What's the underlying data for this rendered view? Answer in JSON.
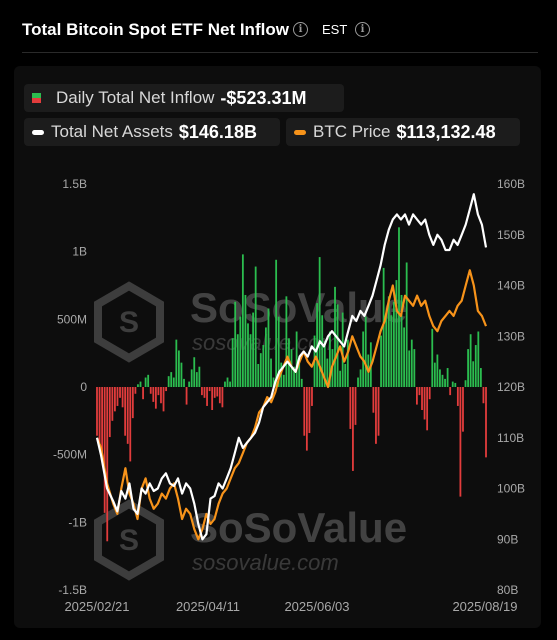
{
  "header": {
    "title": "Total Bitcoin Spot ETF Net Inflow",
    "timezone": "EST",
    "info_icon": "info-circle-icon"
  },
  "legend": {
    "inflow": {
      "label": "Daily Total Net Inflow",
      "value": "-$523.31M",
      "positive_color": "#2bbd4f",
      "negative_color": "#e23c3c"
    },
    "assets": {
      "label": "Total Net Assets",
      "value": "$146.18B",
      "color": "#ffffff"
    },
    "btc": {
      "label": "BTC Price",
      "value": "$113,132.48",
      "color": "#f7931a"
    }
  },
  "watermark": {
    "logo_text": "SoSoValue",
    "url_text": "sosovalue.com"
  },
  "chart_data": {
    "type": "bar",
    "x_range": [
      "2025-02-21",
      "2025-08-19"
    ],
    "x_tick_labels": [
      "2025/02/21",
      "2025/04/11",
      "2025/06/03",
      "2025/08/19"
    ],
    "left_axis": {
      "ticks": [
        "1.5B",
        "1B",
        "500M",
        "0",
        "-500M",
        "-1B",
        "-1.5B"
      ],
      "ylim": [
        -1.5,
        1.5
      ],
      "unit": "B USD"
    },
    "right_axis": {
      "ticks": [
        "160B",
        "150B",
        "140B",
        "130B",
        "120B",
        "110B",
        "100B",
        "90B",
        "80B"
      ],
      "ylim": [
        80,
        160
      ],
      "unit": "B USD"
    },
    "series": [
      {
        "name": "Daily Total Net Inflow",
        "type": "bar",
        "axis": "left",
        "values": [
          -0.36,
          -0.45,
          -0.52,
          -0.93,
          -1.14,
          -0.37,
          -0.25,
          -0.18,
          -0.14,
          -0.08,
          -0.15,
          -0.36,
          -0.42,
          -0.55,
          -0.23,
          -0.05,
          0.02,
          0.04,
          -0.09,
          0.07,
          0.09,
          -0.05,
          -0.11,
          -0.16,
          -0.06,
          -0.12,
          -0.18,
          -0.03,
          0.08,
          0.11,
          0.07,
          0.35,
          0.27,
          0.18,
          0.06,
          -0.13,
          0.04,
          0.13,
          0.22,
          0.11,
          0.15,
          -0.06,
          -0.08,
          -0.14,
          -0.03,
          -0.17,
          -0.08,
          -0.07,
          -0.12,
          -0.15,
          0.04,
          0.07,
          0.04,
          0.36,
          0.63,
          0.39,
          0.52,
          0.98,
          0.68,
          0.47,
          0.39,
          0.55,
          0.89,
          0.17,
          0.25,
          0.31,
          0.44,
          0.58,
          0.21,
          0.07,
          0.94,
          0.52,
          0.18,
          0.09,
          0.67,
          0.36,
          0.28,
          0.15,
          0.41,
          0.19,
          0.06,
          -0.36,
          -0.47,
          -0.34,
          -0.14,
          0.38,
          0.62,
          0.96,
          0.53,
          0.34,
          0.21,
          0.41,
          0.28,
          0.74,
          0.61,
          0.12,
          0.55,
          0.17,
          0.35,
          -0.31,
          -0.62,
          -0.28,
          0.07,
          0.13,
          0.41,
          0.52,
          0.24,
          0.33,
          -0.19,
          -0.42,
          -0.36,
          0.38,
          0.88,
          0.54,
          0.67,
          0.53,
          0.63,
          0.79,
          1.18,
          0.68,
          0.44,
          0.92,
          0.27,
          0.35,
          0.28,
          -0.13,
          -0.06,
          -0.17,
          -0.24,
          -0.32,
          -0.09,
          0.43,
          0.18,
          0.24,
          0.13,
          0.09,
          0.06,
          0.14,
          -0.06,
          0.04,
          0.03,
          -0.14,
          -0.81,
          -0.33,
          0.05,
          0.28,
          0.39,
          0.19,
          0.31,
          0.41,
          0.14,
          -0.12,
          -0.52
        ]
      },
      {
        "name": "Total Net Assets",
        "type": "line",
        "axis": "right",
        "points": [
          [
            0,
            110
          ],
          [
            2,
            106.5
          ],
          [
            5,
            100
          ],
          [
            8,
            97.5
          ],
          [
            10,
            95.5
          ],
          [
            12,
            99.5
          ],
          [
            14,
            98
          ],
          [
            16,
            101
          ],
          [
            18,
            96
          ],
          [
            20,
            95
          ],
          [
            22,
            100
          ],
          [
            24,
            99
          ],
          [
            26,
            101
          ],
          [
            28,
            99.5
          ],
          [
            30,
            100
          ],
          [
            32,
            102
          ],
          [
            34,
            103
          ],
          [
            36,
            101
          ],
          [
            38,
            100.5
          ],
          [
            40,
            102
          ],
          [
            42,
            99
          ],
          [
            44,
            101
          ],
          [
            46,
            100
          ],
          [
            48,
            97
          ],
          [
            50,
            93
          ],
          [
            52,
            90
          ],
          [
            54,
            91
          ],
          [
            56,
            98
          ],
          [
            58,
            98.5
          ],
          [
            60,
            101
          ],
          [
            62,
            100
          ],
          [
            64,
            102
          ],
          [
            66,
            104
          ],
          [
            68,
            107
          ],
          [
            70,
            110
          ],
          [
            72,
            108
          ],
          [
            74,
            109
          ],
          [
            76,
            110
          ],
          [
            78,
            111
          ],
          [
            80,
            113
          ],
          [
            82,
            116
          ],
          [
            84,
            117
          ],
          [
            86,
            118
          ],
          [
            88,
            121
          ],
          [
            90,
            123
          ],
          [
            92,
            124
          ],
          [
            94,
            125
          ],
          [
            96,
            124
          ],
          [
            98,
            123
          ],
          [
            100,
            126
          ],
          [
            102,
            127
          ],
          [
            104,
            126
          ],
          [
            106,
            128
          ],
          [
            108,
            127
          ],
          [
            110,
            129
          ],
          [
            112,
            128
          ],
          [
            114,
            130
          ],
          [
            116,
            131
          ],
          [
            118,
            130
          ],
          [
            120,
            129
          ],
          [
            122,
            128
          ],
          [
            124,
            131
          ],
          [
            126,
            134
          ],
          [
            128,
            133
          ],
          [
            130,
            135
          ],
          [
            132,
            134
          ],
          [
            134,
            136
          ],
          [
            136,
            138
          ],
          [
            138,
            141
          ],
          [
            140,
            144
          ],
          [
            142,
            148
          ],
          [
            144,
            151
          ],
          [
            146,
            153
          ],
          [
            148,
            154
          ],
          [
            150,
            153
          ],
          [
            152,
            154
          ],
          [
            154,
            152
          ],
          [
            156,
            154
          ],
          [
            158,
            153
          ],
          [
            160,
            152
          ],
          [
            162,
            153
          ],
          [
            164,
            150
          ],
          [
            166,
            148
          ],
          [
            168,
            150
          ],
          [
            170,
            149
          ],
          [
            172,
            147
          ],
          [
            174,
            147
          ],
          [
            176,
            149
          ],
          [
            178,
            148
          ],
          [
            180,
            150
          ],
          [
            182,
            152
          ],
          [
            184,
            155
          ],
          [
            186,
            158
          ],
          [
            188,
            154
          ],
          [
            190,
            152
          ],
          [
            192,
            147.5
          ]
        ]
      },
      {
        "name": "BTC Price",
        "type": "line",
        "axis": "right",
        "points": [
          [
            0,
            110
          ],
          [
            2,
            108
          ],
          [
            5,
            101
          ],
          [
            8,
            97
          ],
          [
            10,
            95
          ],
          [
            12,
            100
          ],
          [
            14,
            104
          ],
          [
            16,
            99
          ],
          [
            18,
            97
          ],
          [
            20,
            94
          ],
          [
            22,
            100
          ],
          [
            24,
            102
          ],
          [
            26,
            98
          ],
          [
            28,
            96
          ],
          [
            30,
            97
          ],
          [
            32,
            99
          ],
          [
            34,
            98
          ],
          [
            36,
            100
          ],
          [
            38,
            101
          ],
          [
            40,
            98
          ],
          [
            42,
            94
          ],
          [
            44,
            96
          ],
          [
            46,
            95
          ],
          [
            48,
            92
          ],
          [
            50,
            90
          ],
          [
            52,
            92
          ],
          [
            54,
            95
          ],
          [
            56,
            93
          ],
          [
            58,
            94
          ],
          [
            60,
            97
          ],
          [
            62,
            99
          ],
          [
            64,
            100
          ],
          [
            66,
            102
          ],
          [
            68,
            104
          ],
          [
            70,
            105
          ],
          [
            72,
            107
          ],
          [
            74,
            109
          ],
          [
            76,
            110
          ],
          [
            78,
            112
          ],
          [
            80,
            115
          ],
          [
            82,
            116
          ],
          [
            84,
            118
          ],
          [
            86,
            117
          ],
          [
            88,
            119
          ],
          [
            90,
            122
          ],
          [
            92,
            124
          ],
          [
            94,
            126
          ],
          [
            96,
            124
          ],
          [
            98,
            123
          ],
          [
            100,
            125
          ],
          [
            102,
            127
          ],
          [
            104,
            125
          ],
          [
            106,
            124
          ],
          [
            108,
            126
          ],
          [
            110,
            124
          ],
          [
            112,
            122
          ],
          [
            114,
            120
          ],
          [
            116,
            124
          ],
          [
            118,
            126
          ],
          [
            120,
            128
          ],
          [
            122,
            125
          ],
          [
            124,
            127
          ],
          [
            126,
            130
          ],
          [
            128,
            128
          ],
          [
            130,
            126
          ],
          [
            132,
            125
          ],
          [
            134,
            123
          ],
          [
            136,
            125
          ],
          [
            138,
            128
          ],
          [
            140,
            131
          ],
          [
            142,
            133
          ],
          [
            144,
            137
          ],
          [
            146,
            140
          ],
          [
            148,
            135
          ],
          [
            150,
            134
          ],
          [
            152,
            138
          ],
          [
            154,
            137
          ],
          [
            156,
            136
          ],
          [
            158,
            138
          ],
          [
            160,
            136
          ],
          [
            162,
            137
          ],
          [
            164,
            134
          ],
          [
            166,
            132
          ],
          [
            168,
            131
          ],
          [
            170,
            133
          ],
          [
            172,
            134
          ],
          [
            174,
            135
          ],
          [
            176,
            134
          ],
          [
            178,
            136
          ],
          [
            180,
            137
          ],
          [
            182,
            140
          ],
          [
            184,
            143
          ],
          [
            186,
            140
          ],
          [
            188,
            135
          ],
          [
            190,
            134
          ],
          [
            192,
            132
          ]
        ]
      }
    ],
    "grid": false,
    "legend_position": "top"
  }
}
